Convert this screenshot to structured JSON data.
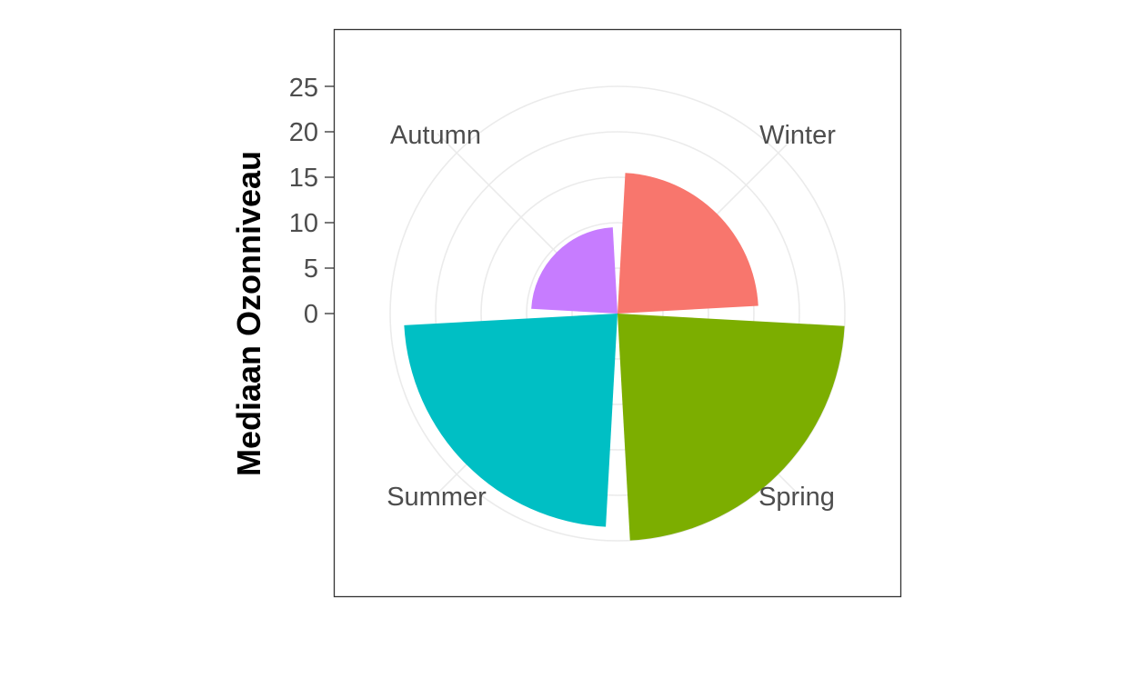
{
  "chart_data": {
    "type": "bar",
    "coord": "polar",
    "categories": [
      "Winter",
      "Spring",
      "Summer",
      "Autumn"
    ],
    "values": [
      15.5,
      25,
      23.5,
      9.5
    ],
    "colors": [
      "#F8766D",
      "#7CAE00",
      "#00BFC4",
      "#C77CFF"
    ],
    "ylabel": "Mediaan Ozonniveau",
    "xlabel": "",
    "title": "",
    "ylim": [
      0,
      28
    ],
    "yticks": [
      "0",
      "5",
      "10",
      "15",
      "20",
      "25"
    ],
    "grid": true,
    "legend": "none"
  }
}
